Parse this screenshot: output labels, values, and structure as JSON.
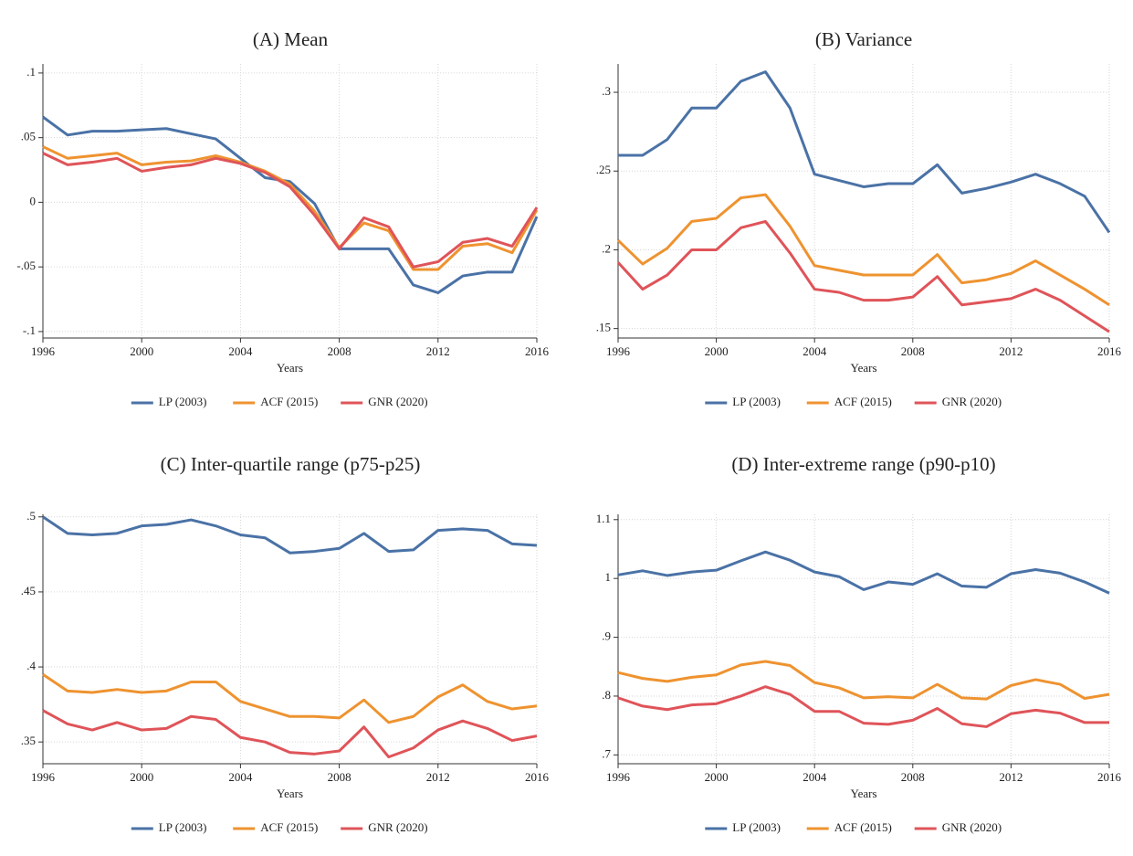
{
  "chart_data": [
    {
      "type": "line",
      "title": "(A) Mean",
      "x_label": "Years",
      "x": [
        1996,
        1997,
        1998,
        1999,
        2000,
        2001,
        2002,
        2003,
        2004,
        2005,
        2006,
        2007,
        2008,
        2009,
        2010,
        2011,
        2012,
        2013,
        2014,
        2015,
        2016
      ],
      "xlim": [
        1996,
        2016
      ],
      "xticks": [
        1996,
        2000,
        2004,
        2008,
        2012,
        2016
      ],
      "ylim": [
        -0.105,
        0.107
      ],
      "yticks": [
        {
          "value": 0.1,
          "label": ".1"
        },
        {
          "value": 0.05,
          "label": ".05"
        },
        0,
        {
          "value": -0.05,
          "label": "-.05"
        },
        {
          "value": -0.1,
          "label": "-.1"
        }
      ],
      "grid": true,
      "legend": "bottom",
      "series": [
        {
          "name": "LP (2003)",
          "color": "#4a72a6",
          "values": [
            0.066,
            0.052,
            0.055,
            0.055,
            0.056,
            0.057,
            0.053,
            0.049,
            0.034,
            0.019,
            0.016,
            -0.001,
            -0.036,
            -0.036,
            -0.036,
            -0.064,
            -0.07,
            -0.057,
            -0.054,
            -0.054,
            -0.011
          ]
        },
        {
          "name": "ACF (2015)",
          "color": "#ee9330",
          "values": [
            0.043,
            0.034,
            0.036,
            0.038,
            0.029,
            0.031,
            0.032,
            0.036,
            0.031,
            0.024,
            0.014,
            -0.007,
            -0.035,
            -0.016,
            -0.022,
            -0.052,
            -0.052,
            -0.034,
            -0.032,
            -0.039,
            -0.006
          ]
        },
        {
          "name": "GNR (2020)",
          "color": "#df5459",
          "values": [
            0.038,
            0.029,
            0.031,
            0.034,
            0.024,
            0.027,
            0.029,
            0.034,
            0.03,
            0.023,
            0.012,
            -0.01,
            -0.036,
            -0.012,
            -0.019,
            -0.05,
            -0.046,
            -0.031,
            -0.028,
            -0.034,
            -0.004
          ]
        }
      ]
    },
    {
      "type": "line",
      "title": "(B) Variance",
      "x_label": "Years",
      "x": [
        1996,
        1997,
        1998,
        1999,
        2000,
        2001,
        2002,
        2003,
        2004,
        2005,
        2006,
        2007,
        2008,
        2009,
        2010,
        2011,
        2012,
        2013,
        2014,
        2015,
        2016
      ],
      "xlim": [
        1996,
        2016
      ],
      "xticks": [
        1996,
        2000,
        2004,
        2008,
        2012,
        2016
      ],
      "ylim": [
        0.144,
        0.318
      ],
      "yticks": [
        {
          "value": 0.3,
          "label": ".3"
        },
        {
          "value": 0.25,
          "label": ".25"
        },
        {
          "value": 0.2,
          "label": ".2"
        },
        {
          "value": 0.15,
          "label": ".15"
        }
      ],
      "grid": true,
      "legend": "bottom",
      "series": [
        {
          "name": "LP (2003)",
          "color": "#4a72a6",
          "values": [
            0.26,
            0.26,
            0.27,
            0.29,
            0.29,
            0.307,
            0.313,
            0.29,
            0.248,
            0.244,
            0.24,
            0.242,
            0.242,
            0.254,
            0.236,
            0.239,
            0.243,
            0.248,
            0.242,
            0.234,
            0.211
          ]
        },
        {
          "name": "ACF (2015)",
          "color": "#ee9330",
          "values": [
            0.206,
            0.191,
            0.201,
            0.218,
            0.22,
            0.233,
            0.235,
            0.215,
            0.19,
            0.187,
            0.184,
            0.184,
            0.184,
            0.197,
            0.179,
            0.181,
            0.185,
            0.193,
            0.184,
            0.175,
            0.165
          ]
        },
        {
          "name": "GNR (2020)",
          "color": "#df5459",
          "values": [
            0.192,
            0.175,
            0.184,
            0.2,
            0.2,
            0.214,
            0.218,
            0.198,
            0.175,
            0.173,
            0.168,
            0.168,
            0.17,
            0.183,
            0.165,
            0.167,
            0.169,
            0.175,
            0.168,
            0.158,
            0.148
          ]
        }
      ]
    },
    {
      "type": "line",
      "title": "(C) Inter-quartile range (p75-p25)",
      "x_label": "Years",
      "x": [
        1996,
        1997,
        1998,
        1999,
        2000,
        2001,
        2002,
        2003,
        2004,
        2005,
        2006,
        2007,
        2008,
        2009,
        2010,
        2011,
        2012,
        2013,
        2014,
        2015,
        2016
      ],
      "xlim": [
        1996,
        2016
      ],
      "xticks": [
        1996,
        2000,
        2004,
        2008,
        2012,
        2016
      ],
      "ylim": [
        0.3355,
        0.5017
      ],
      "yticks": [
        {
          "value": 0.5,
          "label": ".5"
        },
        {
          "value": 0.45,
          "label": ".45"
        },
        {
          "value": 0.4,
          "label": ".4"
        },
        {
          "value": 0.35,
          "label": ".35"
        }
      ],
      "grid": true,
      "legend": "bottom",
      "series": [
        {
          "name": "LP (2003)",
          "color": "#4a72a6",
          "values": [
            0.5,
            0.489,
            0.488,
            0.489,
            0.494,
            0.495,
            0.498,
            0.494,
            0.488,
            0.486,
            0.476,
            0.477,
            0.479,
            0.489,
            0.477,
            0.478,
            0.491,
            0.492,
            0.491,
            0.482,
            0.481
          ]
        },
        {
          "name": "ACF (2015)",
          "color": "#ee9330",
          "values": [
            0.395,
            0.384,
            0.383,
            0.385,
            0.383,
            0.384,
            0.39,
            0.39,
            0.377,
            0.372,
            0.367,
            0.367,
            0.366,
            0.378,
            0.363,
            0.367,
            0.38,
            0.388,
            0.377,
            0.372,
            0.374
          ]
        },
        {
          "name": "GNR (2020)",
          "color": "#df5459",
          "values": [
            0.371,
            0.362,
            0.358,
            0.363,
            0.358,
            0.359,
            0.367,
            0.365,
            0.353,
            0.35,
            0.343,
            0.342,
            0.344,
            0.36,
            0.34,
            0.346,
            0.358,
            0.364,
            0.359,
            0.351,
            0.354
          ]
        }
      ]
    },
    {
      "type": "line",
      "title": "(D) Inter-extreme range (p90-p10)",
      "x_label": "Years",
      "x": [
        1996,
        1997,
        1998,
        1999,
        2000,
        2001,
        2002,
        2003,
        2004,
        2005,
        2006,
        2007,
        2008,
        2009,
        2010,
        2011,
        2012,
        2013,
        2014,
        2015,
        2016
      ],
      "xlim": [
        1996,
        2016
      ],
      "xticks": [
        1996,
        2000,
        2004,
        2008,
        2012,
        2016
      ],
      "ylim": [
        0.685,
        1.109
      ],
      "yticks": [
        1.1,
        1,
        {
          "value": 0.9,
          "label": ".9"
        },
        {
          "value": 0.8,
          "label": ".8"
        },
        {
          "value": 0.7,
          "label": ".7"
        }
      ],
      "grid": true,
      "legend": "bottom",
      "series": [
        {
          "name": "LP (2003)",
          "color": "#4a72a6",
          "values": [
            1.006,
            1.013,
            1.005,
            1.011,
            1.014,
            1.03,
            1.045,
            1.031,
            1.011,
            1.003,
            0.981,
            0.994,
            0.99,
            1.008,
            0.987,
            0.985,
            1.008,
            1.015,
            1.009,
            0.994,
            0.975
          ]
        },
        {
          "name": "ACF (2015)",
          "color": "#ee9330",
          "values": [
            0.84,
            0.83,
            0.825,
            0.832,
            0.836,
            0.853,
            0.859,
            0.852,
            0.823,
            0.814,
            0.797,
            0.799,
            0.797,
            0.82,
            0.797,
            0.795,
            0.818,
            0.828,
            0.82,
            0.796,
            0.803
          ]
        },
        {
          "name": "GNR (2020)",
          "color": "#df5459",
          "values": [
            0.797,
            0.783,
            0.777,
            0.785,
            0.787,
            0.8,
            0.816,
            0.803,
            0.774,
            0.774,
            0.754,
            0.752,
            0.759,
            0.779,
            0.753,
            0.748,
            0.77,
            0.776,
            0.771,
            0.755,
            0.755
          ]
        }
      ]
    }
  ]
}
